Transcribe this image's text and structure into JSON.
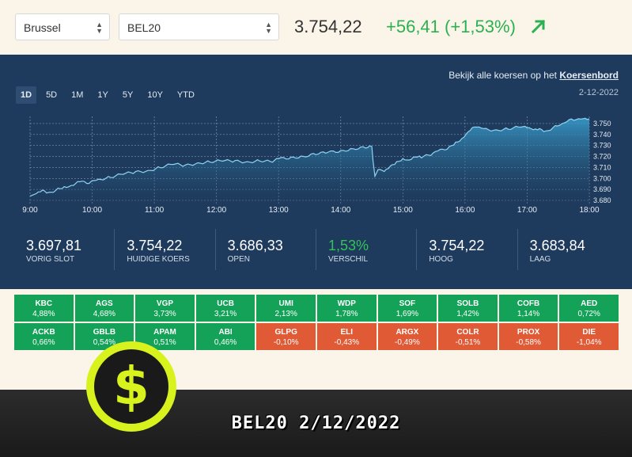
{
  "top": {
    "exchange": "Brussel",
    "index": "BEL20",
    "price": "3.754,22",
    "change": "+56,41 (+1,53%)"
  },
  "panel": {
    "link_prefix": "Bekijk alle koersen op het",
    "link_text": "Koersenbord",
    "date": "2-12-2022",
    "tabs": [
      "1D",
      "5D",
      "1M",
      "1Y",
      "5Y",
      "10Y",
      "YTD"
    ],
    "active_tab": "1D"
  },
  "chart_data": {
    "type": "area",
    "x_ticks": [
      "9:00",
      "10:00",
      "11:00",
      "12:00",
      "13:00",
      "14:00",
      "15:00",
      "16:00",
      "17:00",
      "18:00"
    ],
    "y_ticks": [
      "3.680",
      "3.690",
      "3.700",
      "3.710",
      "3.720",
      "3.730",
      "3.740",
      "3.750"
    ],
    "ylim": [
      3680,
      3755
    ],
    "x_hours": [
      9.0,
      9.05,
      9.1,
      9.2,
      9.3,
      9.45,
      9.55,
      9.7,
      9.8,
      9.95,
      10.1,
      10.3,
      10.5,
      10.7,
      10.9,
      11.1,
      11.3,
      11.5,
      11.7,
      11.9,
      12.1,
      12.3,
      12.5,
      12.7,
      12.9,
      13.0,
      13.2,
      13.4,
      13.6,
      13.8,
      14.0,
      14.2,
      14.4,
      14.5,
      14.52,
      14.55,
      14.6,
      14.7,
      14.8,
      14.9,
      15.0,
      15.1,
      15.2,
      15.3,
      15.45,
      15.6,
      15.75,
      15.85,
      15.95,
      16.05,
      16.15,
      16.3,
      16.5,
      16.7,
      16.9,
      17.0,
      17.1,
      17.2,
      17.3,
      17.45,
      17.6,
      17.75,
      17.9,
      18.0
    ],
    "values": [
      3683.8,
      3685,
      3686,
      3689,
      3687,
      3690,
      3692,
      3694,
      3697,
      3696,
      3699,
      3701,
      3704,
      3706,
      3707,
      3710,
      3713,
      3712,
      3714,
      3715,
      3716,
      3716,
      3715,
      3716,
      3715,
      3718,
      3719,
      3720,
      3722,
      3724,
      3725,
      3727,
      3728,
      3729,
      3716,
      3702,
      3708,
      3706,
      3711,
      3715,
      3718,
      3717,
      3720,
      3719,
      3722,
      3726,
      3728,
      3732,
      3736,
      3743,
      3748,
      3745,
      3744,
      3745,
      3747,
      3746,
      3744,
      3745,
      3743,
      3747,
      3751,
      3754,
      3754,
      3754.2
    ]
  },
  "stats": [
    {
      "value": "3.697,81",
      "label": "VORIG SLOT"
    },
    {
      "value": "3.754,22",
      "label": "HUIDIGE KOERS"
    },
    {
      "value": "3.686,33",
      "label": "OPEN"
    },
    {
      "value": "1,53%",
      "label": "VERSCHIL"
    },
    {
      "value": "3.754,22",
      "label": "HOOG"
    },
    {
      "value": "3.683,84",
      "label": "LAAG"
    }
  ],
  "heatmap": [
    {
      "n": "KBC",
      "p": "4,88%",
      "dir": "up"
    },
    {
      "n": "AGS",
      "p": "4,68%",
      "dir": "up"
    },
    {
      "n": "VGP",
      "p": "3,73%",
      "dir": "up"
    },
    {
      "n": "UCB",
      "p": "3,21%",
      "dir": "up"
    },
    {
      "n": "UMI",
      "p": "2,13%",
      "dir": "up"
    },
    {
      "n": "WDP",
      "p": "1,78%",
      "dir": "up"
    },
    {
      "n": "SOF",
      "p": "1,69%",
      "dir": "up"
    },
    {
      "n": "SOLB",
      "p": "1,42%",
      "dir": "up"
    },
    {
      "n": "COFB",
      "p": "1,14%",
      "dir": "up"
    },
    {
      "n": "AED",
      "p": "0,72%",
      "dir": "up"
    },
    {
      "n": "ACKB",
      "p": "0,66%",
      "dir": "up"
    },
    {
      "n": "GBLB",
      "p": "0,54%",
      "dir": "up"
    },
    {
      "n": "APAM",
      "p": "0,51%",
      "dir": "up"
    },
    {
      "n": "ABI",
      "p": "0,46%",
      "dir": "up"
    },
    {
      "n": "GLPG",
      "p": "-0,10%",
      "dir": "down"
    },
    {
      "n": "ELI",
      "p": "-0,43%",
      "dir": "down"
    },
    {
      "n": "ARGX",
      "p": "-0,49%",
      "dir": "down"
    },
    {
      "n": "COLR",
      "p": "-0,51%",
      "dir": "down"
    },
    {
      "n": "PROX",
      "p": "-0,58%",
      "dir": "down"
    },
    {
      "n": "DIE",
      "p": "-1,04%",
      "dir": "down"
    }
  ],
  "banner": {
    "text": "BEL20 2/12/2022"
  },
  "colors": {
    "up": "#13a257",
    "down": "#e05a36",
    "panel": "#1e3a5c",
    "positive": "#2bb150"
  }
}
